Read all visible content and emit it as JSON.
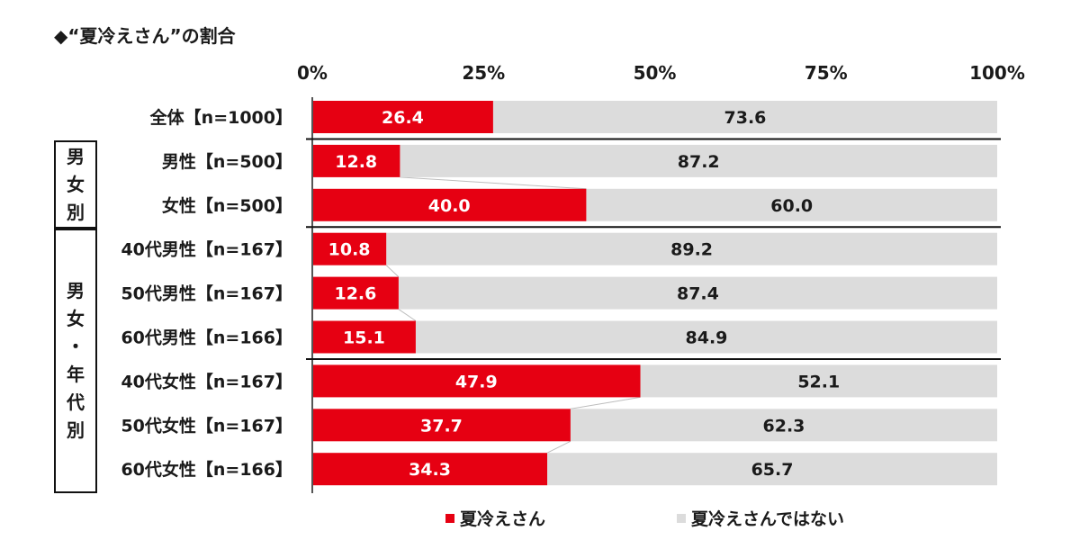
{
  "chart_data": {
    "type": "bar",
    "orientation": "horizontal",
    "stacked": true,
    "title": "◆“夏冷えさん”の割合",
    "xlim": [
      0,
      100
    ],
    "x_ticks": [
      "0%",
      "25%",
      "50%",
      "75%",
      "100%"
    ],
    "categories": [
      "全体【n=1000】",
      "男性【n=500】",
      "女性【n=500】",
      "40代男性【n=167】",
      "50代男性【n=167】",
      "60代男性【n=166】",
      "40代女性【n=167】",
      "50代女性【n=167】",
      "60代女性【n=166】"
    ],
    "series": [
      {
        "name": "夏冷えさん",
        "color": "#e60012",
        "values": [
          26.4,
          12.8,
          40.0,
          10.8,
          12.6,
          15.1,
          47.9,
          37.7,
          34.3
        ],
        "labels": [
          "26.4",
          "12.8",
          "40.0",
          "10.8",
          "12.6",
          "15.1",
          "47.9",
          "37.7",
          "34.3"
        ]
      },
      {
        "name": "夏冷えさんではない",
        "color": "#dcdcdc",
        "values": [
          73.6,
          87.2,
          60.0,
          89.2,
          87.4,
          84.9,
          52.1,
          62.3,
          65.7
        ],
        "labels": [
          "73.6",
          "87.2",
          "60.0",
          "89.2",
          "87.4",
          "84.9",
          "52.1",
          "62.3",
          "65.7"
        ]
      }
    ],
    "groups": [
      {
        "label_chars": [
          "男",
          "女",
          "別"
        ],
        "rows": [
          1,
          2
        ]
      },
      {
        "label_chars": [
          "男",
          "女",
          "・",
          "年",
          "代",
          "別"
        ],
        "rows": [
          3,
          8
        ]
      }
    ],
    "legend_position": "bottom"
  }
}
